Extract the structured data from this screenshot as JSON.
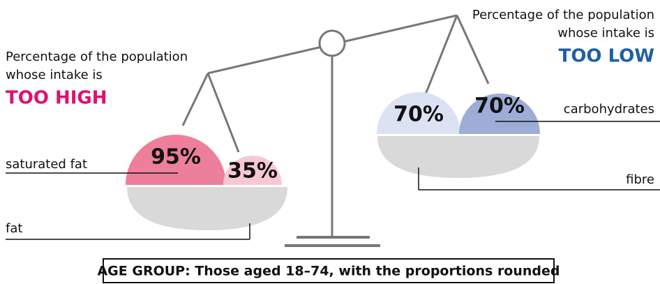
{
  "left": {
    "heading": [
      "Percentage of the population",
      "whose intake is"
    ],
    "emphasis": "TOO HIGH",
    "pan_label": "fat",
    "circles": [
      {
        "label": "saturated fat",
        "value": "95%"
      },
      {
        "value": "35%"
      }
    ]
  },
  "right": {
    "heading": [
      "Percentage of the population",
      "whose intake is"
    ],
    "emphasis": "TOO LOW",
    "pan_label": "fibre",
    "circles": [
      {
        "value": "70%"
      },
      {
        "label": "carbohydrates",
        "value": "70%"
      }
    ]
  },
  "footer": "AGE GROUP: Those aged 18–74, with the proportions rounded"
}
